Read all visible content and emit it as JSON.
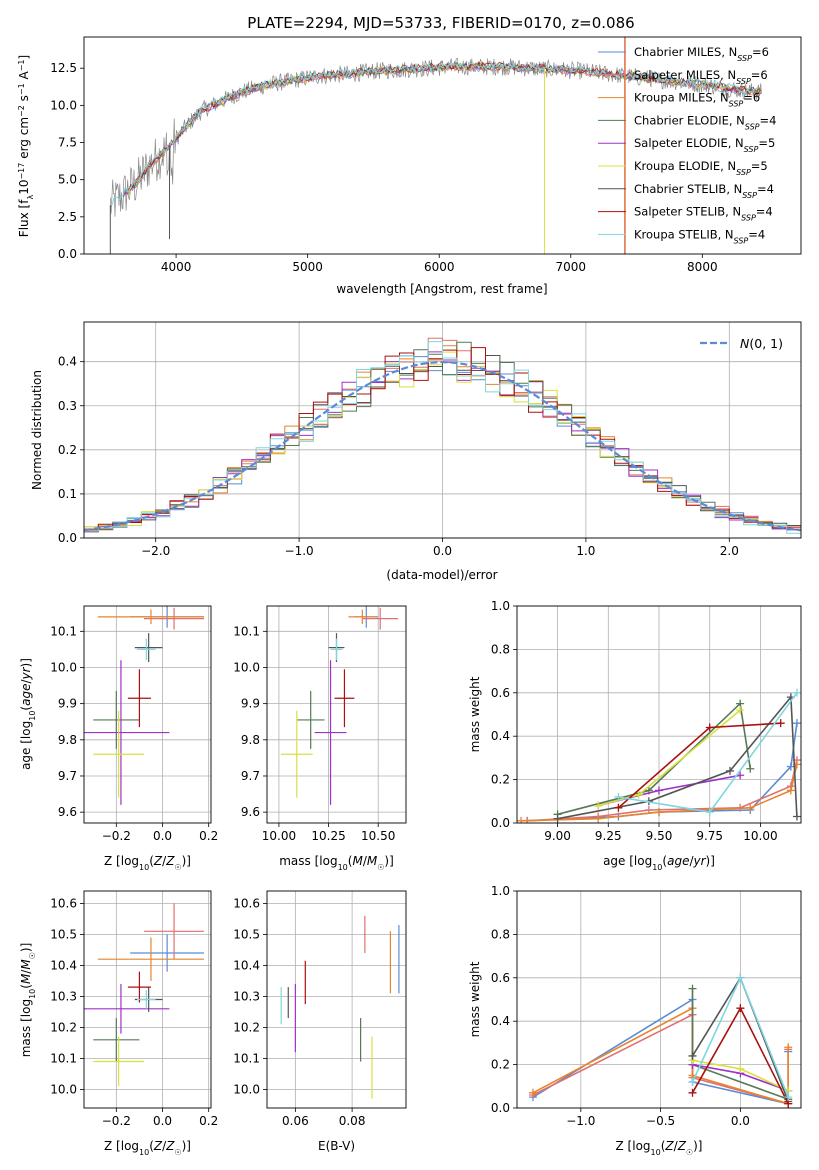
{
  "figure_title": "PLATE=2294, MJD=53733, FIBERID=0170, z=0.086",
  "colors": {
    "Chabrier MILES": "#5b8bd6",
    "Salpeter MILES": "#e07070",
    "Kroupa MILES": "#e8842c",
    "Chabrier ELODIE": "#557a55",
    "Salpeter ELODIE": "#a030c8",
    "Kroupa ELODIE": "#d8e040",
    "Chabrier STELIB": "#555555",
    "Salpeter STELIB": "#aa1010",
    "Kroupa STELIB": "#7fd6e0"
  },
  "chart_data": [
    {
      "id": "spectrum",
      "type": "line",
      "title": "PLATE=2294, MJD=53733, FIBERID=0170, z=0.086",
      "xlabel": "wavelength [Angstrom, rest frame]",
      "ylabel": "Flux [f_λ 10^-17 erg cm^-2 s^-1 A^-1]",
      "xlim": [
        3300,
        8750
      ],
      "ylim": [
        0,
        14.6
      ],
      "xticks": [
        4000,
        5000,
        6000,
        7000,
        8000
      ],
      "yticks": [
        0.0,
        2.5,
        5.0,
        7.5,
        10.0,
        12.5
      ],
      "grid": false,
      "legend_position": "right",
      "continuum": {
        "x": [
          3500,
          3600,
          3700,
          3800,
          3900,
          3950,
          4000,
          4100,
          4200,
          4300,
          4400,
          4500,
          4700,
          4900,
          5100,
          5300,
          5500,
          5700,
          5900,
          6100,
          6300,
          6500,
          6700,
          6900,
          7100,
          7300,
          7500,
          7700,
          7900,
          8100,
          8300,
          8450
        ],
        "y": [
          3.3,
          4.0,
          4.8,
          6.0,
          6.8,
          7.3,
          7.8,
          8.8,
          9.7,
          10.1,
          10.5,
          10.9,
          11.4,
          11.7,
          12.0,
          12.1,
          12.3,
          12.4,
          12.5,
          12.6,
          12.6,
          12.6,
          12.5,
          12.4,
          12.3,
          12.1,
          11.9,
          11.7,
          11.5,
          11.3,
          11.0,
          10.9
        ]
      },
      "features": [
        {
          "x": 6800,
          "y": 0.0
        },
        {
          "x": 3500,
          "y": 0.0
        },
        {
          "x": 3950,
          "y": 1.0
        }
      ],
      "series": [
        {
          "name": "Chabrier MILES, N_SSP=6"
        },
        {
          "name": "Salpeter MILES, N_SSP=6"
        },
        {
          "name": "Kroupa MILES, N_SSP=6"
        },
        {
          "name": "Chabrier ELODIE, N_SSP=4"
        },
        {
          "name": "Salpeter ELODIE, N_SSP=5"
        },
        {
          "name": "Kroupa ELODIE, N_SSP=5"
        },
        {
          "name": "Chabrier STELIB, N_SSP=4"
        },
        {
          "name": "Salpeter STELIB, N_SSP=4"
        },
        {
          "name": "Kroupa STELIB, N_SSP=4"
        }
      ]
    },
    {
      "id": "residuals",
      "type": "line",
      "xlabel": "(data-model)/error",
      "ylabel": "Normed distribution",
      "xlim": [
        -2.5,
        2.5
      ],
      "ylim": [
        0,
        0.49
      ],
      "xticks": [
        -2,
        -1,
        0,
        1,
        2
      ],
      "yticks": [
        0.0,
        0.1,
        0.2,
        0.3,
        0.4
      ],
      "grid": true,
      "legend_position": "top-right",
      "legend": "N(0,1)",
      "bin_width": 0.1,
      "gaussian_sigma": 1
    },
    {
      "id": "age_vs_Z",
      "type": "scatter",
      "xlabel": "Z [log10(Z/Z☉)]",
      "ylabel": "age [log10(age/yr)]",
      "xlim": [
        -0.34,
        0.21
      ],
      "ylim": [
        9.57,
        10.17
      ],
      "xticks": [
        -0.2,
        0.0,
        0.2
      ],
      "yticks": [
        9.6,
        9.7,
        9.8,
        9.9,
        10.0,
        10.1
      ],
      "grid": true,
      "points": [
        {
          "model": "Chabrier MILES",
          "x": 0.02,
          "y": 10.14,
          "xerr": 0.16,
          "yerr": 0.03
        },
        {
          "model": "Salpeter MILES",
          "x": 0.05,
          "y": 10.135,
          "xerr": 0.13,
          "yerr": 0.03
        },
        {
          "model": "Kroupa MILES",
          "x": -0.05,
          "y": 10.14,
          "xerr": 0.23,
          "yerr": 0.02
        },
        {
          "model": "Chabrier ELODIE",
          "x": -0.2,
          "y": 9.855,
          "xerr": 0.1,
          "yerr": 0.08
        },
        {
          "model": "Salpeter ELODIE",
          "x": -0.18,
          "y": 9.82,
          "xerr": 0.21,
          "yerr": 0.2
        },
        {
          "model": "Kroupa ELODIE",
          "x": -0.19,
          "y": 9.76,
          "xerr": 0.11,
          "yerr": 0.12
        },
        {
          "model": "Chabrier STELIB",
          "x": -0.06,
          "y": 10.055,
          "xerr": 0.06,
          "yerr": 0.04
        },
        {
          "model": "Salpeter STELIB",
          "x": -0.1,
          "y": 9.915,
          "xerr": 0.05,
          "yerr": 0.08
        },
        {
          "model": "Kroupa STELIB",
          "x": -0.07,
          "y": 10.05,
          "xerr": 0.04,
          "yerr": 0.03
        }
      ]
    },
    {
      "id": "age_vs_mass",
      "type": "scatter",
      "xlabel": "mass [log10(M/M☉)]",
      "xlim": [
        9.94,
        10.64
      ],
      "ylim": [
        9.57,
        10.17
      ],
      "xticks": [
        10.0,
        10.25,
        10.5
      ],
      "xticklabels": [
        "10.00",
        "10.25",
        "10.50"
      ],
      "yticks": [
        9.6,
        9.7,
        9.8,
        9.9,
        10.0,
        10.1
      ],
      "grid": true,
      "points": [
        {
          "model": "Chabrier MILES",
          "x": 10.44,
          "y": 10.14,
          "xerr": 0.06,
          "yerr": 0.03
        },
        {
          "model": "Salpeter MILES",
          "x": 10.51,
          "y": 10.135,
          "xerr": 0.09,
          "yerr": 0.03
        },
        {
          "model": "Kroupa MILES",
          "x": 10.42,
          "y": 10.14,
          "xerr": 0.07,
          "yerr": 0.02
        },
        {
          "model": "Chabrier ELODIE",
          "x": 10.16,
          "y": 9.855,
          "xerr": 0.07,
          "yerr": 0.08
        },
        {
          "model": "Salpeter ELODIE",
          "x": 10.26,
          "y": 9.82,
          "xerr": 0.08,
          "yerr": 0.2
        },
        {
          "model": "Kroupa ELODIE",
          "x": 10.09,
          "y": 9.76,
          "xerr": 0.08,
          "yerr": 0.12
        },
        {
          "model": "Chabrier STELIB",
          "x": 10.29,
          "y": 10.055,
          "xerr": 0.04,
          "yerr": 0.04
        },
        {
          "model": "Salpeter STELIB",
          "x": 10.33,
          "y": 9.915,
          "xerr": 0.05,
          "yerr": 0.08
        },
        {
          "model": "Kroupa STELIB",
          "x": 10.29,
          "y": 10.05,
          "xerr": 0.03,
          "yerr": 0.03
        }
      ]
    },
    {
      "id": "weight_vs_age",
      "type": "line",
      "xlabel": "age [log10(age/yr)]",
      "ylabel": "mass weight",
      "xlim": [
        8.8,
        10.2
      ],
      "ylim": [
        0,
        1.0
      ],
      "xticks": [
        9.0,
        9.25,
        9.5,
        9.75,
        10.0
      ],
      "xticklabels": [
        "9.00",
        "9.25",
        "9.50",
        "9.75",
        "10.00"
      ],
      "yticks": [
        0.0,
        0.2,
        0.4,
        0.6,
        0.8,
        1.0
      ],
      "grid": true,
      "series": [
        {
          "model": "Chabrier MILES",
          "x": [
            8.85,
            9.3,
            9.5,
            9.95,
            10.15,
            10.18
          ],
          "y": [
            0.01,
            0.03,
            0.05,
            0.06,
            0.26,
            0.46
          ]
        },
        {
          "model": "Salpeter MILES",
          "x": [
            8.85,
            9.2,
            9.45,
            9.9,
            10.15,
            10.18
          ],
          "y": [
            0.01,
            0.03,
            0.06,
            0.07,
            0.17,
            0.29
          ]
        },
        {
          "model": "Kroupa MILES",
          "x": [
            8.82,
            9.2,
            9.5,
            9.95,
            10.15,
            10.18
          ],
          "y": [
            0.01,
            0.02,
            0.05,
            0.07,
            0.15,
            0.27
          ]
        },
        {
          "model": "Chabrier ELODIE",
          "x": [
            9.0,
            9.45,
            9.9,
            9.95
          ],
          "y": [
            0.04,
            0.15,
            0.55,
            0.25
          ]
        },
        {
          "model": "Salpeter ELODIE",
          "x": [
            9.2,
            9.5,
            9.9
          ],
          "y": [
            0.08,
            0.15,
            0.22
          ]
        },
        {
          "model": "Kroupa ELODIE",
          "x": [
            9.2,
            9.4,
            9.9
          ],
          "y": [
            0.08,
            0.13,
            0.52
          ]
        },
        {
          "model": "Chabrier STELIB",
          "x": [
            9.0,
            9.45,
            9.85,
            10.15,
            10.18
          ],
          "y": [
            0.02,
            0.1,
            0.24,
            0.58,
            0.03
          ]
        },
        {
          "model": "Salpeter STELIB",
          "x": [
            9.3,
            9.75,
            10.1
          ],
          "y": [
            0.07,
            0.44,
            0.46
          ]
        },
        {
          "model": "Kroupa STELIB",
          "x": [
            9.3,
            9.75,
            10.18
          ],
          "y": [
            0.12,
            0.05,
            0.6
          ]
        }
      ]
    },
    {
      "id": "mass_vs_Z",
      "type": "scatter",
      "xlabel": "Z [log10(Z/Z☉)]",
      "ylabel": "mass [log10(M/M☉)]",
      "xlim": [
        -0.34,
        0.21
      ],
      "ylim": [
        9.94,
        10.64
      ],
      "xticks": [
        -0.2,
        0.0,
        0.2
      ],
      "yticks": [
        10.0,
        10.1,
        10.2,
        10.3,
        10.4,
        10.5,
        10.6
      ],
      "grid": true,
      "points": [
        {
          "model": "Chabrier MILES",
          "x": 0.02,
          "y": 10.44,
          "xerr": 0.16,
          "yerr": 0.06
        },
        {
          "model": "Salpeter MILES",
          "x": 0.05,
          "y": 10.51,
          "xerr": 0.13,
          "yerr": 0.09
        },
        {
          "model": "Kroupa MILES",
          "x": -0.05,
          "y": 10.42,
          "xerr": 0.23,
          "yerr": 0.07
        },
        {
          "model": "Chabrier ELODIE",
          "x": -0.2,
          "y": 10.16,
          "xerr": 0.1,
          "yerr": 0.07
        },
        {
          "model": "Salpeter ELODIE",
          "x": -0.18,
          "y": 10.26,
          "xerr": 0.21,
          "yerr": 0.08
        },
        {
          "model": "Kroupa ELODIE",
          "x": -0.19,
          "y": 10.09,
          "xerr": 0.11,
          "yerr": 0.08
        },
        {
          "model": "Chabrier STELIB",
          "x": -0.06,
          "y": 10.29,
          "xerr": 0.06,
          "yerr": 0.04
        },
        {
          "model": "Salpeter STELIB",
          "x": -0.1,
          "y": 10.33,
          "xerr": 0.05,
          "yerr": 0.05
        },
        {
          "model": "Kroupa STELIB",
          "x": -0.07,
          "y": 10.29,
          "xerr": 0.04,
          "yerr": 0.03
        }
      ]
    },
    {
      "id": "mass_vs_ebv",
      "type": "scatter",
      "xlabel": "E(B-V)",
      "xlim": [
        0.05,
        0.099
      ],
      "ylim": [
        9.94,
        10.64
      ],
      "xticks": [
        0.06,
        0.08
      ],
      "xticklabels": [
        "0.06",
        "0.08"
      ],
      "yticks": [
        10.0,
        10.1,
        10.2,
        10.3,
        10.4,
        10.5,
        10.6
      ],
      "grid": true,
      "points": [
        {
          "model": "Chabrier MILES",
          "x": 0.0965,
          "y": 10.42,
          "yerr": 0.11
        },
        {
          "model": "Salpeter MILES",
          "x": 0.0845,
          "y": 10.5,
          "yerr": 0.06
        },
        {
          "model": "Kroupa MILES",
          "x": 0.0935,
          "y": 10.41,
          "yerr": 0.1
        },
        {
          "model": "Chabrier ELODIE",
          "x": 0.083,
          "y": 10.16,
          "yerr": 0.07
        },
        {
          "model": "Salpeter ELODIE",
          "x": 0.06,
          "y": 10.23,
          "yerr": 0.11
        },
        {
          "model": "Kroupa ELODIE",
          "x": 0.087,
          "y": 10.07,
          "yerr": 0.1
        },
        {
          "model": "Chabrier STELIB",
          "x": 0.0575,
          "y": 10.28,
          "yerr": 0.05
        },
        {
          "model": "Salpeter STELIB",
          "x": 0.0635,
          "y": 10.345,
          "yerr": 0.07
        },
        {
          "model": "Kroupa STELIB",
          "x": 0.055,
          "y": 10.27,
          "yerr": 0.06
        }
      ]
    },
    {
      "id": "weight_vs_Z",
      "type": "line",
      "xlabel": "Z [log10(Z/Z☉)]",
      "ylabel": "mass weight",
      "xlim": [
        -1.4,
        0.38
      ],
      "ylim": [
        0,
        1.0
      ],
      "xticks": [
        -1.0,
        -0.5,
        0.0
      ],
      "yticks": [
        0.0,
        0.2,
        0.4,
        0.6,
        0.8,
        1.0
      ],
      "grid": true,
      "series": [
        {
          "model": "Chabrier MILES",
          "x": [
            -1.3,
            -0.3,
            -0.3,
            0.3,
            0.3
          ],
          "y": [
            0.05,
            0.5,
            0.12,
            0.02,
            0.26
          ]
        },
        {
          "model": "Salpeter MILES",
          "x": [
            -1.3,
            -0.3,
            -0.3,
            0.3,
            0.3
          ],
          "y": [
            0.06,
            0.43,
            0.14,
            0.02,
            0.27
          ]
        },
        {
          "model": "Kroupa MILES",
          "x": [
            -1.3,
            -0.3,
            -0.3,
            0.3,
            0.3
          ],
          "y": [
            0.07,
            0.46,
            0.15,
            0.02,
            0.28
          ]
        },
        {
          "model": "Chabrier ELODIE",
          "x": [
            -0.3,
            -0.3,
            0.3
          ],
          "y": [
            0.55,
            0.2,
            0.04
          ]
        },
        {
          "model": "Salpeter ELODIE",
          "x": [
            -0.3,
            0.0,
            0.3
          ],
          "y": [
            0.2,
            0.16,
            0.08
          ]
        },
        {
          "model": "Kroupa ELODIE",
          "x": [
            -0.3,
            0.0,
            0.3
          ],
          "y": [
            0.22,
            0.18,
            0.08
          ]
        },
        {
          "model": "Chabrier STELIB",
          "x": [
            -0.3,
            0.0,
            0.3
          ],
          "y": [
            0.24,
            0.6,
            0.03
          ]
        },
        {
          "model": "Salpeter STELIB",
          "x": [
            -0.3,
            0.0,
            0.3
          ],
          "y": [
            0.07,
            0.46,
            0.02
          ]
        },
        {
          "model": "Kroupa STELIB",
          "x": [
            -0.3,
            0.0,
            0.3
          ],
          "y": [
            0.12,
            0.6,
            0.05
          ]
        }
      ]
    }
  ]
}
